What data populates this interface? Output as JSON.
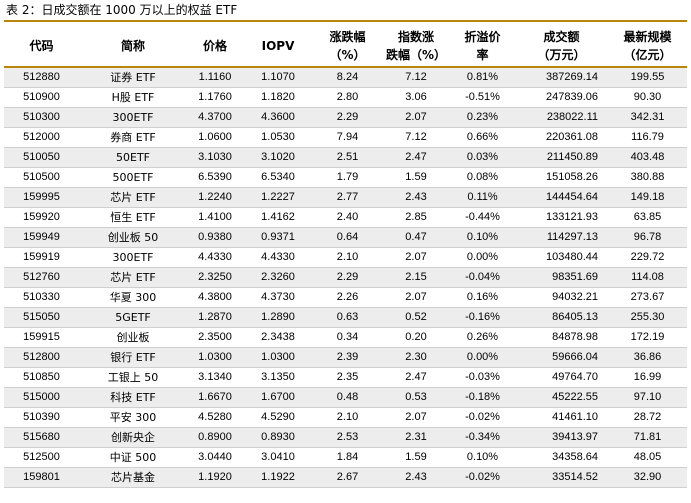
{
  "caption": "表 2：日成交额在 1000 万以上的权益 ETF",
  "headers": [
    [
      "代码"
    ],
    [
      "简称"
    ],
    [
      "价格"
    ],
    [
      "IOPV"
    ],
    [
      "涨跌幅",
      "（%）"
    ],
    [
      "指数涨",
      "跌幅（%）"
    ],
    [
      "折溢价",
      "率"
    ],
    [
      "成交额",
      "（万元）"
    ],
    [
      "最新规模",
      "（亿元）"
    ]
  ],
  "rows": [
    [
      "512880",
      "证券 ETF",
      "1.1160",
      "1.1070",
      "8.24",
      "7.12",
      "0.81%",
      "387269.14",
      "199.55"
    ],
    [
      "510900",
      "H股 ETF",
      "1.1760",
      "1.1820",
      "2.80",
      "3.06",
      "-0.51%",
      "247839.06",
      "90.30"
    ],
    [
      "510300",
      "300ETF",
      "4.3700",
      "4.3600",
      "2.29",
      "2.07",
      "0.23%",
      "238022.11",
      "342.31"
    ],
    [
      "512000",
      "券商 ETF",
      "1.0600",
      "1.0530",
      "7.94",
      "7.12",
      "0.66%",
      "220361.08",
      "116.79"
    ],
    [
      "510050",
      "50ETF",
      "3.1030",
      "3.1020",
      "2.51",
      "2.47",
      "0.03%",
      "211450.89",
      "403.48"
    ],
    [
      "510500",
      "500ETF",
      "6.5390",
      "6.5340",
      "1.79",
      "1.59",
      "0.08%",
      "151058.26",
      "380.88"
    ],
    [
      "159995",
      "芯片 ETF",
      "1.2240",
      "1.2227",
      "2.77",
      "2.43",
      "0.11%",
      "144454.64",
      "149.18"
    ],
    [
      "159920",
      "恒生 ETF",
      "1.4100",
      "1.4162",
      "2.40",
      "2.85",
      "-0.44%",
      "133121.93",
      "63.85"
    ],
    [
      "159949",
      "创业板 50",
      "0.9380",
      "0.9371",
      "0.64",
      "0.47",
      "0.10%",
      "114297.13",
      "96.78"
    ],
    [
      "159919",
      "300ETF",
      "4.4330",
      "4.4330",
      "2.10",
      "2.07",
      "0.00%",
      "103480.44",
      "229.72"
    ],
    [
      "512760",
      "芯片 ETF",
      "2.3250",
      "2.3260",
      "2.29",
      "2.15",
      "-0.04%",
      "98351.69",
      "114.08"
    ],
    [
      "510330",
      "华夏 300",
      "4.3800",
      "4.3730",
      "2.26",
      "2.07",
      "0.16%",
      "94032.21",
      "273.67"
    ],
    [
      "515050",
      "5GETF",
      "1.2870",
      "1.2890",
      "0.63",
      "0.52",
      "-0.16%",
      "86405.13",
      "255.30"
    ],
    [
      "159915",
      "创业板",
      "2.3500",
      "2.3438",
      "0.34",
      "0.20",
      "0.26%",
      "84878.98",
      "172.19"
    ],
    [
      "512800",
      "银行 ETF",
      "1.0300",
      "1.0300",
      "2.39",
      "2.30",
      "0.00%",
      "59666.04",
      "36.86"
    ],
    [
      "510850",
      "工银上 50",
      "3.1340",
      "3.1350",
      "2.35",
      "2.47",
      "-0.03%",
      "49764.70",
      "16.99"
    ],
    [
      "515000",
      "科技 ETF",
      "1.6670",
      "1.6700",
      "0.48",
      "0.53",
      "-0.18%",
      "45222.55",
      "97.10"
    ],
    [
      "510390",
      "平安 300",
      "4.5280",
      "4.5290",
      "2.10",
      "2.07",
      "-0.02%",
      "41461.10",
      "28.72"
    ],
    [
      "515680",
      "创新央企",
      "0.8900",
      "0.8930",
      "2.53",
      "2.31",
      "-0.34%",
      "39413.97",
      "71.81"
    ],
    [
      "512500",
      "中证 500",
      "3.0440",
      "3.0410",
      "1.84",
      "1.59",
      "0.10%",
      "34358.64",
      "48.05"
    ],
    [
      "159801",
      "芯片基金",
      "1.1920",
      "1.1922",
      "2.67",
      "2.43",
      "-0.02%",
      "33514.52",
      "32.90"
    ]
  ]
}
